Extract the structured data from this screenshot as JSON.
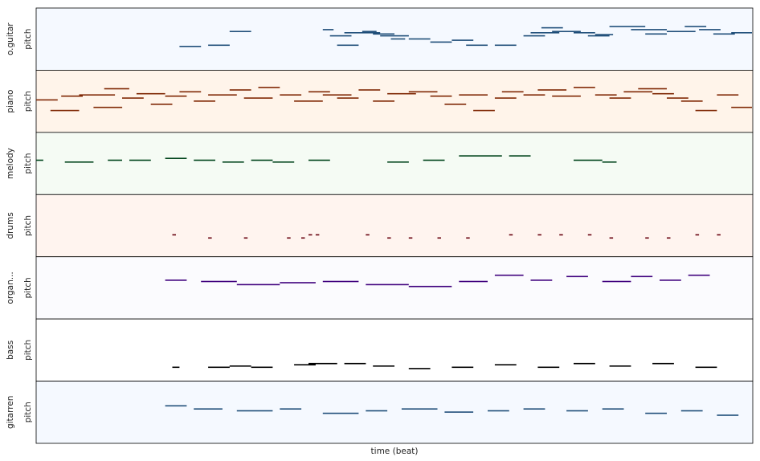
{
  "chart_data": {
    "type": "pianoroll",
    "xlabel": "time (beat)",
    "tracks": [
      {
        "name": "o.guitar",
        "ylabel": "pitch",
        "bg": "#f5f9ff",
        "note_color": "#1f4e79",
        "notes": [
          [
            0.2,
            0.03,
            0.38
          ],
          [
            0.24,
            0.03,
            0.4
          ],
          [
            0.27,
            0.03,
            0.62
          ],
          [
            0.4,
            0.015,
            0.65
          ],
          [
            0.41,
            0.03,
            0.55
          ],
          [
            0.42,
            0.03,
            0.4
          ],
          [
            0.43,
            0.05,
            0.6
          ],
          [
            0.455,
            0.02,
            0.62
          ],
          [
            0.47,
            0.03,
            0.58
          ],
          [
            0.48,
            0.04,
            0.55
          ],
          [
            0.495,
            0.02,
            0.5
          ],
          [
            0.52,
            0.03,
            0.5
          ],
          [
            0.55,
            0.03,
            0.45
          ],
          [
            0.58,
            0.03,
            0.48
          ],
          [
            0.6,
            0.03,
            0.4
          ],
          [
            0.64,
            0.03,
            0.4
          ],
          [
            0.68,
            0.03,
            0.55
          ],
          [
            0.69,
            0.04,
            0.6
          ],
          [
            0.705,
            0.03,
            0.68
          ],
          [
            0.72,
            0.04,
            0.62
          ],
          [
            0.75,
            0.03,
            0.6
          ],
          [
            0.77,
            0.03,
            0.55
          ],
          [
            0.78,
            0.025,
            0.57
          ],
          [
            0.8,
            0.05,
            0.7
          ],
          [
            0.83,
            0.05,
            0.65
          ],
          [
            0.85,
            0.03,
            0.58
          ],
          [
            0.88,
            0.04,
            0.62
          ],
          [
            0.905,
            0.03,
            0.7
          ],
          [
            0.925,
            0.03,
            0.65
          ],
          [
            0.945,
            0.03,
            0.58
          ],
          [
            0.97,
            0.03,
            0.6
          ]
        ]
      },
      {
        "name": "piano",
        "ylabel": "pitch",
        "bg": "#fff4ea",
        "note_color": "#7f2704",
        "notes": [
          [
            0.0,
            0.03,
            0.52
          ],
          [
            0.02,
            0.04,
            0.35
          ],
          [
            0.035,
            0.03,
            0.58
          ],
          [
            0.06,
            0.05,
            0.6
          ],
          [
            0.08,
            0.04,
            0.4
          ],
          [
            0.095,
            0.035,
            0.7
          ],
          [
            0.12,
            0.03,
            0.55
          ],
          [
            0.14,
            0.04,
            0.62
          ],
          [
            0.16,
            0.03,
            0.45
          ],
          [
            0.18,
            0.03,
            0.58
          ],
          [
            0.2,
            0.03,
            0.65
          ],
          [
            0.22,
            0.03,
            0.5
          ],
          [
            0.24,
            0.04,
            0.6
          ],
          [
            0.27,
            0.03,
            0.68
          ],
          [
            0.29,
            0.04,
            0.55
          ],
          [
            0.31,
            0.03,
            0.72
          ],
          [
            0.34,
            0.03,
            0.6
          ],
          [
            0.36,
            0.04,
            0.5
          ],
          [
            0.38,
            0.03,
            0.65
          ],
          [
            0.4,
            0.04,
            0.6
          ],
          [
            0.42,
            0.03,
            0.55
          ],
          [
            0.45,
            0.03,
            0.68
          ],
          [
            0.47,
            0.03,
            0.5
          ],
          [
            0.49,
            0.04,
            0.62
          ],
          [
            0.52,
            0.04,
            0.65
          ],
          [
            0.55,
            0.03,
            0.58
          ],
          [
            0.57,
            0.03,
            0.45
          ],
          [
            0.59,
            0.04,
            0.6
          ],
          [
            0.61,
            0.03,
            0.35
          ],
          [
            0.64,
            0.03,
            0.55
          ],
          [
            0.65,
            0.03,
            0.65
          ],
          [
            0.68,
            0.03,
            0.6
          ],
          [
            0.7,
            0.04,
            0.68
          ],
          [
            0.72,
            0.04,
            0.58
          ],
          [
            0.75,
            0.03,
            0.72
          ],
          [
            0.78,
            0.03,
            0.6
          ],
          [
            0.8,
            0.03,
            0.55
          ],
          [
            0.82,
            0.04,
            0.65
          ],
          [
            0.84,
            0.04,
            0.7
          ],
          [
            0.86,
            0.03,
            0.62
          ],
          [
            0.88,
            0.03,
            0.55
          ],
          [
            0.9,
            0.03,
            0.5
          ],
          [
            0.92,
            0.03,
            0.35
          ],
          [
            0.95,
            0.03,
            0.6
          ],
          [
            0.97,
            0.03,
            0.4
          ]
        ]
      },
      {
        "name": "melody",
        "ylabel": "pitch",
        "bg": "#f5fbf4",
        "note_color": "#00441b",
        "notes": [
          [
            0.0,
            0.01,
            0.55
          ],
          [
            0.04,
            0.04,
            0.52
          ],
          [
            0.1,
            0.02,
            0.55
          ],
          [
            0.13,
            0.03,
            0.55
          ],
          [
            0.18,
            0.03,
            0.58
          ],
          [
            0.22,
            0.03,
            0.55
          ],
          [
            0.26,
            0.03,
            0.52
          ],
          [
            0.3,
            0.03,
            0.55
          ],
          [
            0.33,
            0.03,
            0.52
          ],
          [
            0.38,
            0.03,
            0.55
          ],
          [
            0.49,
            0.03,
            0.52
          ],
          [
            0.54,
            0.03,
            0.55
          ],
          [
            0.59,
            0.06,
            0.62
          ],
          [
            0.66,
            0.03,
            0.62
          ],
          [
            0.75,
            0.04,
            0.55
          ],
          [
            0.79,
            0.02,
            0.52
          ]
        ]
      },
      {
        "name": "drums",
        "ylabel": "pitch",
        "bg": "#fff4ef",
        "note_color": "#67000d",
        "notes": [
          [
            0.19,
            0.005,
            0.35
          ],
          [
            0.24,
            0.005,
            0.3
          ],
          [
            0.29,
            0.005,
            0.3
          ],
          [
            0.35,
            0.005,
            0.3
          ],
          [
            0.37,
            0.005,
            0.3
          ],
          [
            0.38,
            0.005,
            0.35
          ],
          [
            0.39,
            0.005,
            0.35
          ],
          [
            0.46,
            0.005,
            0.35
          ],
          [
            0.49,
            0.005,
            0.3
          ],
          [
            0.52,
            0.005,
            0.3
          ],
          [
            0.56,
            0.005,
            0.3
          ],
          [
            0.6,
            0.005,
            0.3
          ],
          [
            0.66,
            0.005,
            0.35
          ],
          [
            0.7,
            0.005,
            0.35
          ],
          [
            0.73,
            0.005,
            0.35
          ],
          [
            0.77,
            0.005,
            0.35
          ],
          [
            0.8,
            0.005,
            0.3
          ],
          [
            0.85,
            0.005,
            0.3
          ],
          [
            0.88,
            0.005,
            0.3
          ],
          [
            0.92,
            0.005,
            0.35
          ],
          [
            0.95,
            0.005,
            0.35
          ]
        ]
      },
      {
        "name": "organ...",
        "ylabel": "pitch",
        "bg": "#fbfbfe",
        "note_color": "#3f007d",
        "notes": [
          [
            0.18,
            0.03,
            0.62
          ],
          [
            0.23,
            0.05,
            0.6
          ],
          [
            0.28,
            0.06,
            0.55
          ],
          [
            0.34,
            0.05,
            0.58
          ],
          [
            0.4,
            0.05,
            0.6
          ],
          [
            0.46,
            0.06,
            0.55
          ],
          [
            0.52,
            0.06,
            0.52
          ],
          [
            0.59,
            0.04,
            0.6
          ],
          [
            0.64,
            0.04,
            0.7
          ],
          [
            0.69,
            0.03,
            0.62
          ],
          [
            0.74,
            0.03,
            0.68
          ],
          [
            0.79,
            0.04,
            0.6
          ],
          [
            0.83,
            0.03,
            0.68
          ],
          [
            0.87,
            0.03,
            0.62
          ],
          [
            0.91,
            0.03,
            0.7
          ]
        ]
      },
      {
        "name": "bass",
        "ylabel": "pitch",
        "bg": "#ffffff",
        "note_color": "#000000",
        "notes": [
          [
            0.19,
            0.01,
            0.22
          ],
          [
            0.24,
            0.03,
            0.22
          ],
          [
            0.27,
            0.03,
            0.24
          ],
          [
            0.3,
            0.03,
            0.22
          ],
          [
            0.36,
            0.03,
            0.26
          ],
          [
            0.38,
            0.04,
            0.28
          ],
          [
            0.43,
            0.03,
            0.28
          ],
          [
            0.47,
            0.03,
            0.24
          ],
          [
            0.52,
            0.03,
            0.2
          ],
          [
            0.58,
            0.03,
            0.22
          ],
          [
            0.64,
            0.03,
            0.26
          ],
          [
            0.7,
            0.03,
            0.22
          ],
          [
            0.75,
            0.03,
            0.28
          ],
          [
            0.8,
            0.03,
            0.24
          ],
          [
            0.86,
            0.03,
            0.28
          ],
          [
            0.92,
            0.03,
            0.22
          ]
        ]
      },
      {
        "name": "gitarren",
        "ylabel": "pitch",
        "bg": "#f5f9ff",
        "note_color": "#1f4e79",
        "notes": [
          [
            0.18,
            0.03,
            0.6
          ],
          [
            0.22,
            0.04,
            0.55
          ],
          [
            0.28,
            0.05,
            0.52
          ],
          [
            0.34,
            0.03,
            0.55
          ],
          [
            0.4,
            0.05,
            0.48
          ],
          [
            0.46,
            0.03,
            0.52
          ],
          [
            0.51,
            0.05,
            0.55
          ],
          [
            0.57,
            0.04,
            0.5
          ],
          [
            0.63,
            0.03,
            0.52
          ],
          [
            0.68,
            0.03,
            0.55
          ],
          [
            0.74,
            0.03,
            0.52
          ],
          [
            0.79,
            0.03,
            0.55
          ],
          [
            0.85,
            0.03,
            0.48
          ],
          [
            0.9,
            0.03,
            0.52
          ],
          [
            0.95,
            0.03,
            0.45
          ]
        ]
      }
    ]
  }
}
